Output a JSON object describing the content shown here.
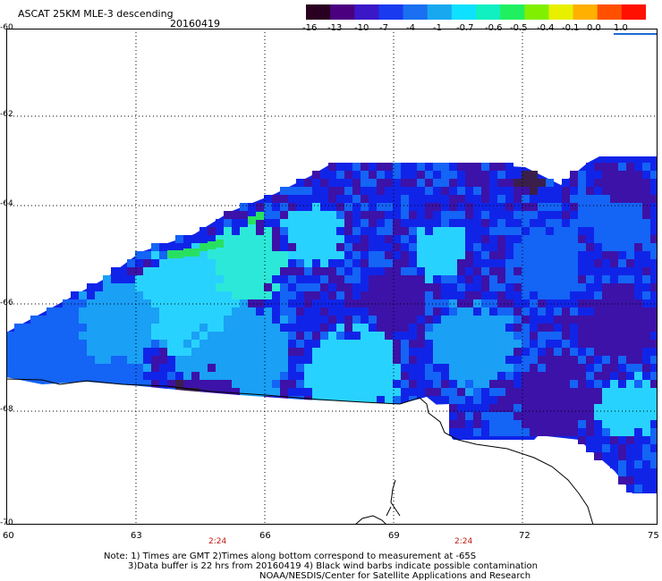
{
  "header": {
    "title": "ASCAT 25KM MLE-3 descending",
    "date": "20160419"
  },
  "colorbar": {
    "labels": [
      "-16",
      "-13",
      "-10",
      "-7",
      "-4",
      "-1",
      "-0.7",
      "-0.6",
      "-0.5",
      "-0.4",
      "-0.1",
      "0.0",
      "1.0"
    ],
    "colors": [
      "#2a0020",
      "#4b0080",
      "#3a18c8",
      "#1a3af0",
      "#1a70f0",
      "#18a8f0",
      "#10e0ff",
      "#10f0c0",
      "#20f060",
      "#80f000",
      "#e8f000",
      "#ffb000",
      "#ff5000",
      "#ff1000"
    ]
  },
  "map": {
    "lat_labels": [
      "-60",
      "-62",
      "-64",
      "-66",
      "-68",
      "-70"
    ],
    "lon_labels": [
      "60",
      "63",
      "66",
      "69",
      "72",
      "75"
    ],
    "time_labels": [
      "2:24",
      "2:24"
    ],
    "land_color": "#ffffff",
    "coast_color": "#000000"
  },
  "footer": {
    "line1": "Note: 1) Times are GMT 2)Times along bottom correspond to measurement at -65S",
    "line2": "3)Data buffer is 22 hrs from 20160419 4) Black wind barbs indicate possible contamination",
    "line3": "NOAA/NESDIS/Center for Satellite Applications and Research"
  }
}
